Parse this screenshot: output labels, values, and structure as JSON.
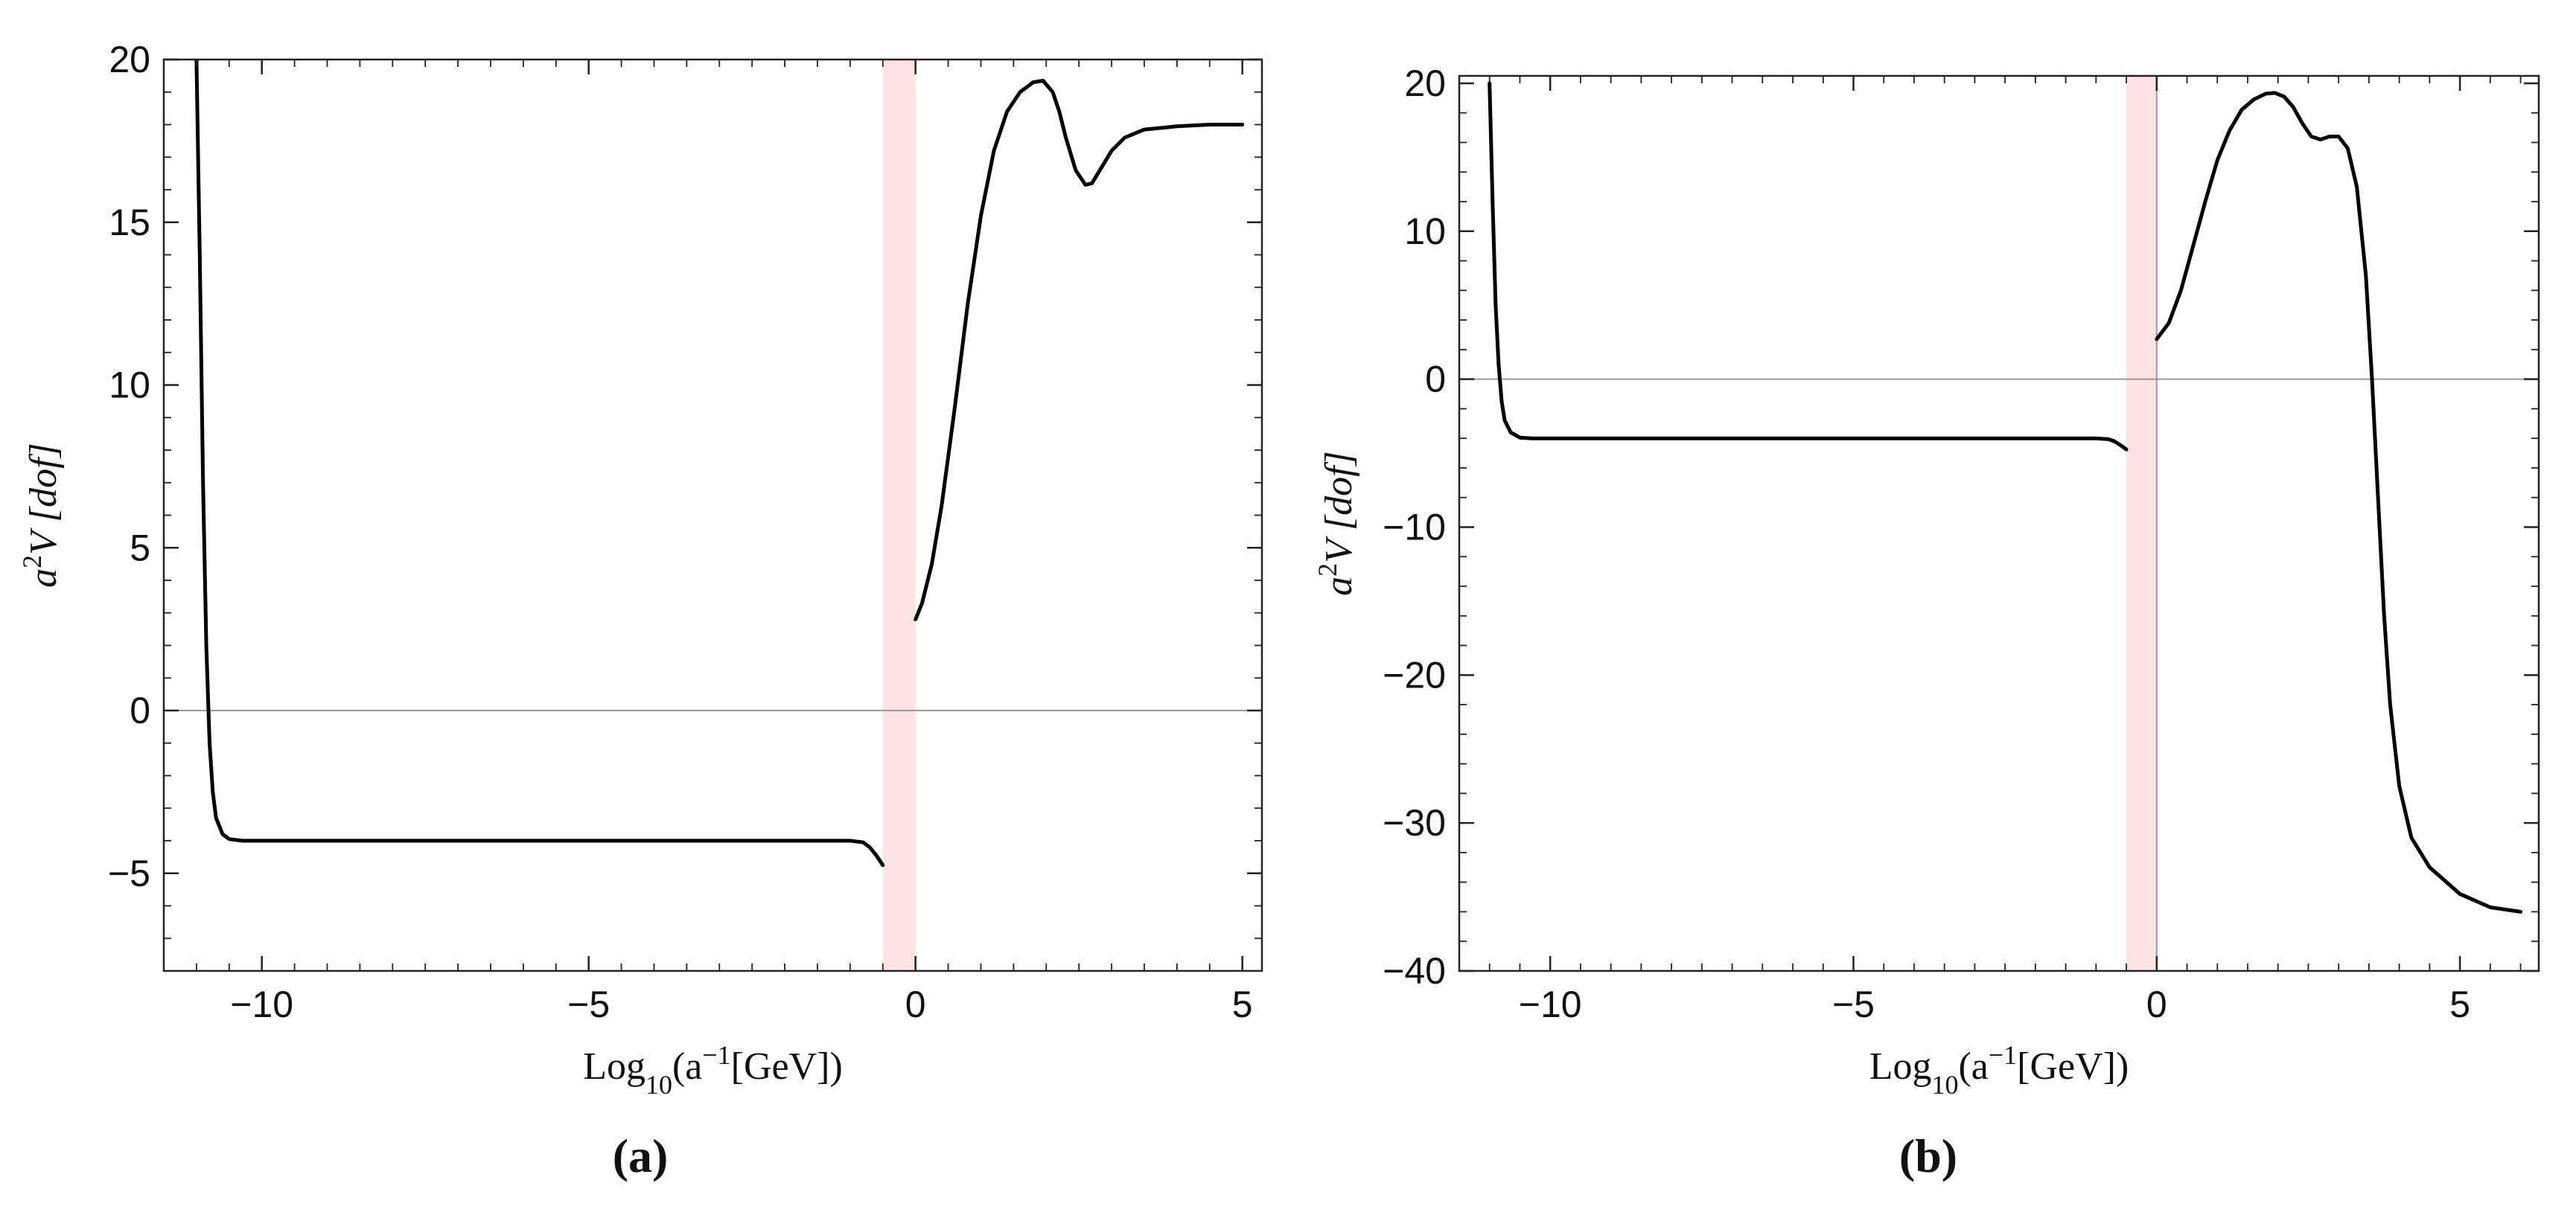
{
  "chart_data": [
    {
      "type": "line",
      "panel_label": "(a)",
      "xlabel": "Log10(a^-1[GeV])",
      "xlabel_parts": {
        "pre": "Log",
        "sub": "10",
        "mid": "(a",
        "sup": "−1",
        "post": "[GeV])"
      },
      "ylabel": "a^2 V [dof]",
      "ylabel_parts": {
        "a": "a",
        "sup": "2",
        "rest": "V [dof]"
      },
      "xlim": [
        -11.5,
        5.3
      ],
      "ylim": [
        -8,
        20
      ],
      "xticks": [
        -10,
        -5,
        0,
        5
      ],
      "xtick_labels": [
        "−10",
        "−5",
        "0",
        "5"
      ],
      "yticks": [
        -5,
        0,
        5,
        10,
        15,
        20
      ],
      "ytick_labels": [
        "−5",
        "0",
        "5",
        "10",
        "15",
        "20"
      ],
      "x_minor_step": 0.5,
      "y_minor_step": 1,
      "shaded_band": {
        "x": [
          -0.5,
          0
        ],
        "color": "#fde3e3"
      },
      "horizontal_reference_line": 0,
      "series": [
        {
          "segment": "left",
          "points": [
            [
              -11.0,
              20.0
            ],
            [
              -10.95,
              14.0
            ],
            [
              -10.9,
              7.0
            ],
            [
              -10.85,
              2.0
            ],
            [
              -10.8,
              -1.0
            ],
            [
              -10.75,
              -2.5
            ],
            [
              -10.7,
              -3.3
            ],
            [
              -10.6,
              -3.8
            ],
            [
              -10.5,
              -3.95
            ],
            [
              -10.3,
              -4.0
            ],
            [
              -9.0,
              -4.0
            ],
            [
              -6.0,
              -4.0
            ],
            [
              -3.0,
              -4.0
            ],
            [
              -1.0,
              -4.0
            ],
            [
              -0.8,
              -4.05
            ],
            [
              -0.7,
              -4.2
            ],
            [
              -0.6,
              -4.45
            ],
            [
              -0.5,
              -4.75
            ]
          ]
        },
        {
          "segment": "right",
          "points": [
            [
              0.0,
              2.8
            ],
            [
              0.1,
              3.3
            ],
            [
              0.25,
              4.5
            ],
            [
              0.4,
              6.3
            ],
            [
              0.6,
              9.3
            ],
            [
              0.8,
              12.5
            ],
            [
              1.0,
              15.2
            ],
            [
              1.2,
              17.2
            ],
            [
              1.4,
              18.4
            ],
            [
              1.6,
              19.0
            ],
            [
              1.8,
              19.3
            ],
            [
              1.95,
              19.35
            ],
            [
              2.1,
              19.0
            ],
            [
              2.2,
              18.4
            ],
            [
              2.3,
              17.6
            ],
            [
              2.45,
              16.6
            ],
            [
              2.6,
              16.15
            ],
            [
              2.7,
              16.2
            ],
            [
              2.85,
              16.7
            ],
            [
              3.0,
              17.2
            ],
            [
              3.2,
              17.6
            ],
            [
              3.5,
              17.85
            ],
            [
              4.0,
              17.95
            ],
            [
              4.5,
              18.0
            ],
            [
              5.0,
              18.0
            ]
          ]
        }
      ]
    },
    {
      "type": "line",
      "panel_label": "(b)",
      "xlabel": "Log10(a^-1[GeV])",
      "xlabel_parts": {
        "pre": "Log",
        "sub": "10",
        "mid": "(a",
        "sup": "−1",
        "post": "[GeV])"
      },
      "ylabel": "a^2 V [dof]",
      "ylabel_parts": {
        "a": "a",
        "sup": "2",
        "rest": "V [dof]"
      },
      "xlim": [
        -11.5,
        6.3
      ],
      "ylim": [
        -40,
        20.5
      ],
      "xticks": [
        -10,
        -5,
        0,
        5
      ],
      "xtick_labels": [
        "−10",
        "−5",
        "0",
        "5"
      ],
      "yticks": [
        -40,
        -30,
        -20,
        -10,
        0,
        10,
        20
      ],
      "ytick_labels": [
        "−40",
        "−30",
        "−20",
        "−10",
        "0",
        "10",
        "20"
      ],
      "x_minor_step": 0.5,
      "y_minor_step": 2,
      "shaded_band": {
        "x": [
          -0.5,
          0
        ],
        "color": "#fde3e3"
      },
      "horizontal_reference_line": 0,
      "vertical_reference_line": 0,
      "series": [
        {
          "segment": "left",
          "points": [
            [
              -11.0,
              20.0
            ],
            [
              -10.95,
              12.0
            ],
            [
              -10.9,
              5.0
            ],
            [
              -10.85,
              1.0
            ],
            [
              -10.8,
              -1.5
            ],
            [
              -10.75,
              -2.8
            ],
            [
              -10.65,
              -3.6
            ],
            [
              -10.5,
              -3.95
            ],
            [
              -10.3,
              -4.0
            ],
            [
              -9.0,
              -4.0
            ],
            [
              -6.0,
              -4.0
            ],
            [
              -3.0,
              -4.0
            ],
            [
              -1.0,
              -4.0
            ],
            [
              -0.8,
              -4.05
            ],
            [
              -0.7,
              -4.2
            ],
            [
              -0.6,
              -4.45
            ],
            [
              -0.5,
              -4.75
            ]
          ]
        },
        {
          "segment": "right",
          "points": [
            [
              0.0,
              2.7
            ],
            [
              0.2,
              3.8
            ],
            [
              0.4,
              6.0
            ],
            [
              0.6,
              9.0
            ],
            [
              0.8,
              12.0
            ],
            [
              1.0,
              14.8
            ],
            [
              1.2,
              16.8
            ],
            [
              1.4,
              18.2
            ],
            [
              1.6,
              18.9
            ],
            [
              1.8,
              19.3
            ],
            [
              1.95,
              19.35
            ],
            [
              2.1,
              19.1
            ],
            [
              2.25,
              18.4
            ],
            [
              2.4,
              17.3
            ],
            [
              2.55,
              16.4
            ],
            [
              2.7,
              16.2
            ],
            [
              2.85,
              16.4
            ],
            [
              3.0,
              16.4
            ],
            [
              3.15,
              15.6
            ],
            [
              3.3,
              13.0
            ],
            [
              3.45,
              7.0
            ],
            [
              3.55,
              0.0
            ],
            [
              3.65,
              -8.0
            ],
            [
              3.75,
              -16.0
            ],
            [
              3.85,
              -22.0
            ],
            [
              4.0,
              -27.5
            ],
            [
              4.2,
              -31.0
            ],
            [
              4.5,
              -33.0
            ],
            [
              5.0,
              -34.8
            ],
            [
              5.5,
              -35.7
            ],
            [
              6.0,
              -36.0
            ]
          ]
        }
      ]
    }
  ]
}
